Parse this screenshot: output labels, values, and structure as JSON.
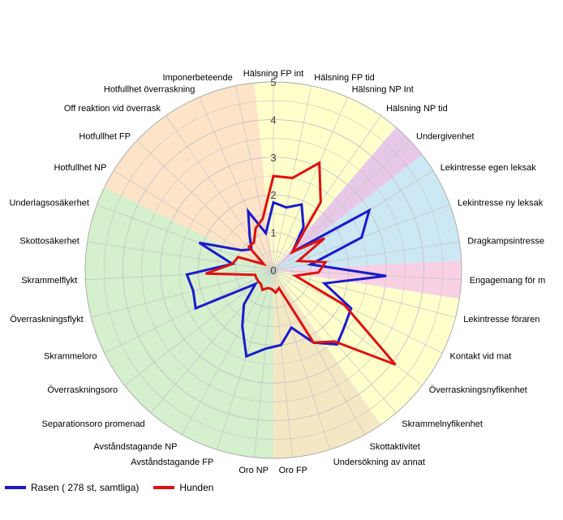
{
  "chart_data": {
    "type": "radar",
    "ylim": [
      0,
      5
    ],
    "ticks": [
      "0",
      "1",
      "2",
      "3",
      "4",
      "5"
    ],
    "categories": [
      "Hälsning FP int",
      "Hälsning FP tid",
      "Hälsning NP Int",
      "Hälsning NP tid",
      "Undergivenhet",
      "Lekintresse egen leksak",
      "Lekintresse ny leksak",
      "Dragkampsintresse",
      "Engagemang för m",
      "Lekintresse föraren",
      "Kontakt vid mat",
      "Överraskningsnyfikenhet",
      "Skrammelnyfikenhet",
      "Skottaktivitet",
      "Undersökning av annat",
      "Oro FP",
      "Oro NP",
      "Avståndstagande FP",
      "Avståndstagande NP",
      "Separationsoro promenad",
      "Överraskningsoro",
      "Skrammeloro",
      "Överraskningsflykt",
      "Skrammelflykt",
      "Skottosäkerhet",
      "Underlagsosäkerhet",
      "Hotfullhet NP",
      "Hotfullhet FP",
      "Off reaktion vid överrask",
      "Hotfullhet överraskning",
      "Imponerbeteende"
    ],
    "sectors": [
      {
        "from": -0.5,
        "to": 3.5,
        "color": "#ffffcc"
      },
      {
        "from": 3.5,
        "to": 4.5,
        "color": "#e8c8e8"
      },
      {
        "from": 4.5,
        "to": 7.5,
        "color": "#cce8f4"
      },
      {
        "from": 7.5,
        "to": 8.5,
        "color": "#f8d0e4"
      },
      {
        "from": 8.5,
        "to": 12.5,
        "color": "#ffffcc"
      },
      {
        "from": 12.5,
        "to": 15.5,
        "color": "#f4e8c4"
      },
      {
        "from": 15.5,
        "to": 25.5,
        "color": "#d4f0cc"
      },
      {
        "from": 25.5,
        "to": 30.5,
        "color": "#fde4c8"
      }
    ],
    "series": [
      {
        "name": "Rasen ( 278 st, samtliga)",
        "color": "#1a1acc",
        "values": [
          1.8,
          1.7,
          1.9,
          1.4,
          0.7,
          3.0,
          2.5,
          1.0,
          3.0,
          1.4,
          2.3,
          2.4,
          2.6,
          2.2,
          1.6,
          2.0,
          2.1,
          2.4,
          1.7,
          1.2,
          0.6,
          2.3,
          2.2,
          2.3,
          1.1,
          2.1,
          1.0,
          0.8,
          1.1,
          1.7,
          1.0
        ]
      },
      {
        "name": "Hunden",
        "color": "#e01010",
        "values": [
          2.5,
          2.5,
          3.1,
          2.2,
          0.7,
          1.6,
          0.7,
          1.4,
          1.2,
          0.6,
          2.1,
          4.1,
          2.5,
          2.2,
          0.5,
          0.6,
          0.5,
          0.5,
          0.6,
          0.5,
          0.5,
          0.5,
          0.5,
          1.8,
          1.1,
          1.0,
          0.3,
          0.9,
          0.9,
          1.2,
          1.4
        ]
      }
    ]
  }
}
